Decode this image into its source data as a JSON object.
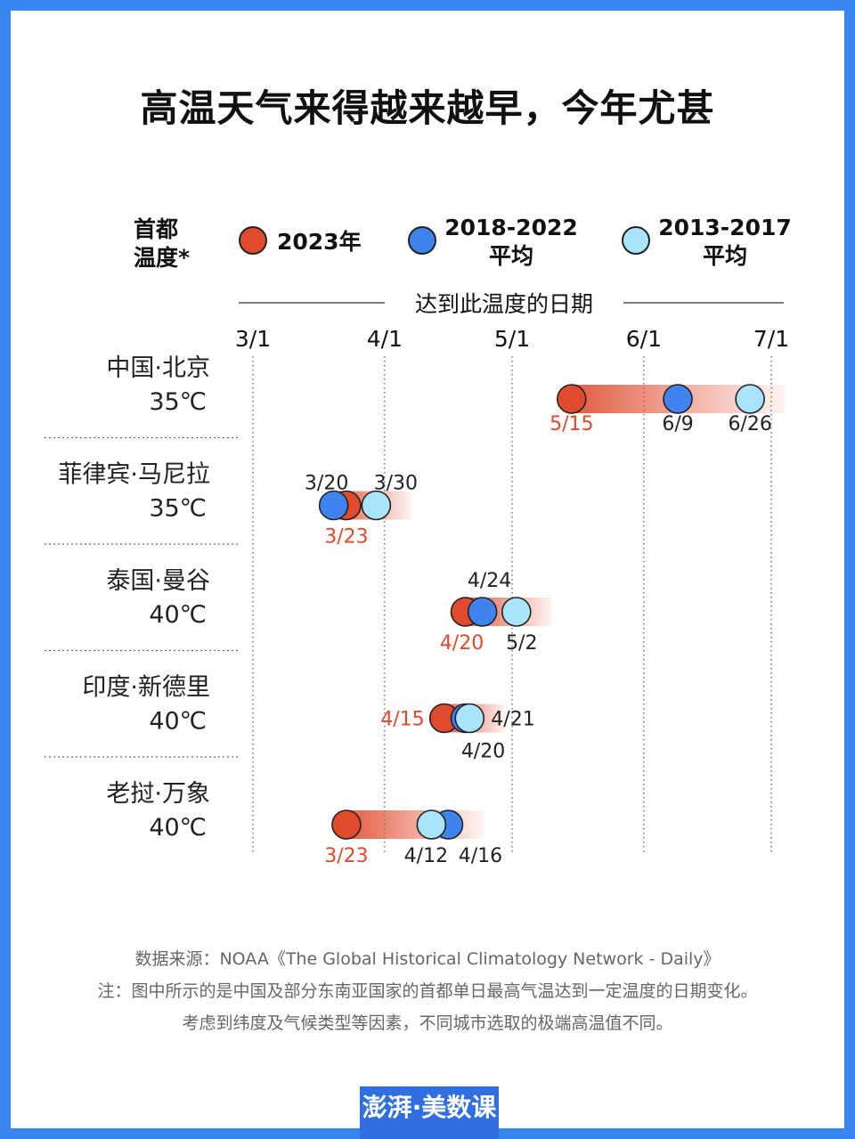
{
  "title": "高温天气来得越来越早，今年尤甚",
  "legend": {
    "label_line1": "首都",
    "label_line2": "温度*",
    "items": [
      {
        "line1": "2023年",
        "line2": "",
        "color": "#e04a2d"
      },
      {
        "line1": "2018-2022",
        "line2": "平均",
        "color": "#3f84ee"
      },
      {
        "line1": "2013-2017",
        "line2": "平均",
        "color": "#a8e4fb"
      }
    ]
  },
  "chart_data": {
    "type": "dot-range",
    "axis_title": "达到此温度的日期",
    "ticks": [
      "3/1",
      "4/1",
      "5/1",
      "6/1",
      "7/1"
    ],
    "series": [
      {
        "name": "2023年",
        "color": "#e04a2d"
      },
      {
        "name": "2018-2022 平均",
        "color": "#3f84ee"
      },
      {
        "name": "2013-2017 平均",
        "color": "#a8e4fb"
      }
    ],
    "rows": [
      {
        "city": "中国·北京",
        "temp": "35℃",
        "values": [
          "5/15",
          "6/9",
          "6/26"
        ]
      },
      {
        "city": "菲律宾·马尼拉",
        "temp": "35℃",
        "values": [
          "3/23",
          "3/20",
          "3/30"
        ]
      },
      {
        "city": "泰国·曼谷",
        "temp": "40℃",
        "values": [
          "4/20",
          "4/24",
          "5/2"
        ]
      },
      {
        "city": "印度·新德里",
        "temp": "40℃",
        "values": [
          "4/15",
          "4/20",
          "4/21"
        ]
      },
      {
        "city": "老挝·万象",
        "temp": "40℃",
        "values": [
          "3/23",
          "4/16",
          "4/12"
        ]
      }
    ]
  },
  "footer": {
    "source": "数据来源：NOAA《The Global Historical Climatology Network - Daily》",
    "note1": "注：图中所示的是中国及部分东南亚国家的首都单日最高气温达到一定温度的日期变化。",
    "note2": "考虑到纬度及气候类型等因素，不同城市选取的极端高温值不同。"
  },
  "brand": "澎湃·美数课"
}
